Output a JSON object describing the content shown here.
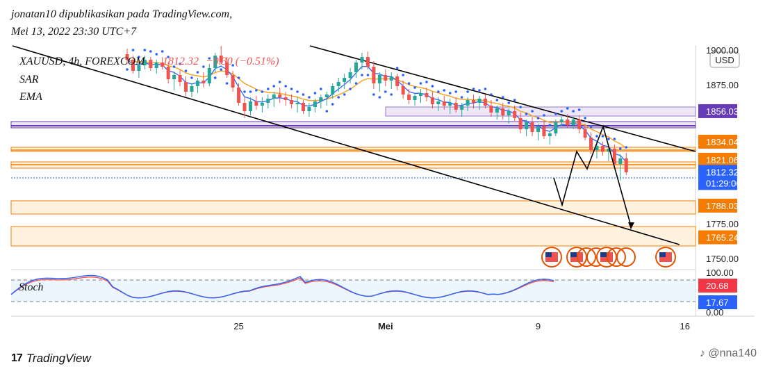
{
  "header": {
    "publisher_line": "jonatan10 dipublikasikan pada TradingView.com,",
    "date_line": "Mei 13, 2022 23:30 UTC+7"
  },
  "chart_data": {
    "type": "candlestick",
    "symbol": "XAUUSD, 4h, FOREXCOM",
    "last_price": "1812.32",
    "change": "−9.30 (−0.51%)",
    "indicators": [
      "SAR",
      "EMA"
    ],
    "currency_label": "USD",
    "y_ticks": [
      "1900.00",
      "1875.00",
      "1775.00",
      "1750.00"
    ],
    "ylim": [
      1742,
      1903
    ],
    "price_tags": [
      {
        "label": "1856.03",
        "value": 1856.03,
        "color": "#673ab7"
      },
      {
        "label": "1834.04",
        "value": 1834.04,
        "color": "#f57c00"
      },
      {
        "label": "1821.06",
        "value": 1821.06,
        "color": "#f57c00"
      },
      {
        "label": "1812.32",
        "value": 1812.32,
        "color": "#2962ff",
        "sub": "01:29:06"
      },
      {
        "label": "1788.03",
        "value": 1788.03,
        "color": "#f57c00"
      },
      {
        "label": "1765.24",
        "value": 1765.24,
        "color": "#f57c00"
      }
    ],
    "x_ticks": [
      {
        "label": "25",
        "bar": 20
      },
      {
        "label": "Mei",
        "bar": 45
      },
      {
        "label": "9",
        "bar": 71
      },
      {
        "label": "16",
        "bar": 96
      }
    ],
    "candles": [
      [
        1897,
        1901,
        1890,
        1893
      ],
      [
        1893,
        1896,
        1883,
        1885
      ],
      [
        1885,
        1891,
        1880,
        1889
      ],
      [
        1889,
        1896,
        1886,
        1893
      ],
      [
        1893,
        1895,
        1885,
        1887
      ],
      [
        1887,
        1893,
        1883,
        1891
      ],
      [
        1891,
        1895,
        1886,
        1888
      ],
      [
        1888,
        1891,
        1876,
        1879
      ],
      [
        1879,
        1884,
        1871,
        1882
      ],
      [
        1882,
        1886,
        1874,
        1877
      ],
      [
        1877,
        1881,
        1867,
        1870
      ],
      [
        1870,
        1876,
        1866,
        1874
      ],
      [
        1874,
        1880,
        1869,
        1878
      ],
      [
        1878,
        1884,
        1873,
        1876
      ],
      [
        1876,
        1890,
        1874,
        1887
      ],
      [
        1887,
        1898,
        1884,
        1896
      ],
      [
        1896,
        1903,
        1890,
        1891
      ],
      [
        1891,
        1895,
        1880,
        1882
      ],
      [
        1882,
        1885,
        1870,
        1873
      ],
      [
        1873,
        1876,
        1860,
        1862
      ],
      [
        1862,
        1866,
        1851,
        1856
      ],
      [
        1856,
        1866,
        1853,
        1863
      ],
      [
        1863,
        1867,
        1857,
        1860
      ],
      [
        1860,
        1866,
        1855,
        1862
      ],
      [
        1862,
        1868,
        1858,
        1865
      ],
      [
        1865,
        1870,
        1859,
        1868
      ],
      [
        1868,
        1873,
        1862,
        1866
      ],
      [
        1866,
        1870,
        1860,
        1864
      ],
      [
        1864,
        1868,
        1858,
        1861
      ],
      [
        1861,
        1866,
        1855,
        1862
      ],
      [
        1862,
        1864,
        1854,
        1856
      ],
      [
        1856,
        1862,
        1852,
        1859
      ],
      [
        1859,
        1865,
        1855,
        1863
      ],
      [
        1863,
        1868,
        1858,
        1866
      ],
      [
        1866,
        1870,
        1860,
        1868
      ],
      [
        1868,
        1876,
        1865,
        1874
      ],
      [
        1874,
        1880,
        1870,
        1877
      ],
      [
        1877,
        1883,
        1872,
        1880
      ],
      [
        1880,
        1887,
        1876,
        1884
      ],
      [
        1884,
        1893,
        1880,
        1891
      ],
      [
        1891,
        1898,
        1886,
        1895
      ],
      [
        1895,
        1899,
        1886,
        1888
      ],
      [
        1888,
        1892,
        1872,
        1876
      ],
      [
        1876,
        1884,
        1870,
        1882
      ],
      [
        1882,
        1886,
        1874,
        1878
      ],
      [
        1878,
        1884,
        1872,
        1881
      ],
      [
        1881,
        1883,
        1871,
        1874
      ],
      [
        1874,
        1878,
        1865,
        1868
      ],
      [
        1868,
        1872,
        1861,
        1864
      ],
      [
        1864,
        1869,
        1860,
        1867
      ],
      [
        1867,
        1872,
        1862,
        1869
      ],
      [
        1869,
        1873,
        1863,
        1866
      ],
      [
        1866,
        1870,
        1858,
        1861
      ],
      [
        1861,
        1866,
        1856,
        1863
      ],
      [
        1863,
        1867,
        1857,
        1860
      ],
      [
        1860,
        1865,
        1854,
        1862
      ],
      [
        1862,
        1866,
        1855,
        1857
      ],
      [
        1857,
        1862,
        1852,
        1860
      ],
      [
        1860,
        1866,
        1856,
        1864
      ],
      [
        1864,
        1868,
        1858,
        1862
      ],
      [
        1862,
        1867,
        1857,
        1865
      ],
      [
        1865,
        1868,
        1858,
        1860
      ],
      [
        1860,
        1864,
        1852,
        1855
      ],
      [
        1855,
        1860,
        1850,
        1858
      ],
      [
        1858,
        1862,
        1850,
        1853
      ],
      [
        1853,
        1858,
        1847,
        1856
      ],
      [
        1856,
        1860,
        1849,
        1851
      ],
      [
        1851,
        1855,
        1840,
        1843
      ],
      [
        1843,
        1850,
        1838,
        1848
      ],
      [
        1848,
        1852,
        1838,
        1841
      ],
      [
        1841,
        1847,
        1835,
        1845
      ],
      [
        1845,
        1849,
        1836,
        1838
      ],
      [
        1838,
        1842,
        1832,
        1840
      ],
      [
        1840,
        1850,
        1838,
        1848
      ],
      [
        1848,
        1852,
        1845,
        1850
      ],
      [
        1850,
        1854,
        1844,
        1846
      ],
      [
        1846,
        1852,
        1843,
        1850
      ],
      [
        1850,
        1853,
        1840,
        1843
      ],
      [
        1843,
        1847,
        1835,
        1837
      ],
      [
        1837,
        1841,
        1825,
        1828
      ],
      [
        1828,
        1834,
        1822,
        1831
      ],
      [
        1831,
        1834,
        1824,
        1827
      ],
      [
        1827,
        1832,
        1820,
        1829
      ],
      [
        1829,
        1832,
        1815,
        1818
      ],
      [
        1818,
        1825,
        1806,
        1822
      ],
      [
        1822,
        1826,
        1810,
        1812
      ]
    ],
    "stoch": {
      "label": "Stoch",
      "k_value": "20.68",
      "d_value": "17.67",
      "top_tick": "100.00",
      "bottom_tick": "0.00",
      "upper_band": 80,
      "lower_band": 20
    }
  },
  "footer": {
    "brand": "TradingView",
    "watermark": "@nna140"
  }
}
